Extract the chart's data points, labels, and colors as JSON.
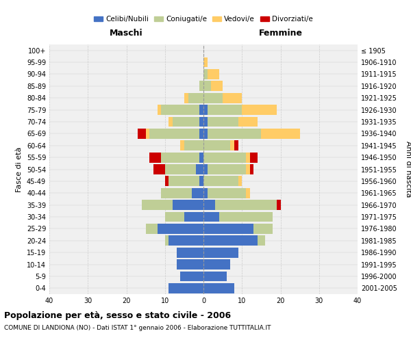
{
  "age_groups": [
    "0-4",
    "5-9",
    "10-14",
    "15-19",
    "20-24",
    "25-29",
    "30-34",
    "35-39",
    "40-44",
    "45-49",
    "50-54",
    "55-59",
    "60-64",
    "65-69",
    "70-74",
    "75-79",
    "80-84",
    "85-89",
    "90-94",
    "95-99",
    "100+"
  ],
  "birth_years": [
    "2001-2005",
    "1996-2000",
    "1991-1995",
    "1986-1990",
    "1981-1985",
    "1976-1980",
    "1971-1975",
    "1966-1970",
    "1961-1965",
    "1956-1960",
    "1951-1955",
    "1946-1950",
    "1941-1945",
    "1936-1940",
    "1931-1935",
    "1926-1930",
    "1921-1925",
    "1916-1920",
    "1911-1915",
    "1906-1910",
    "≤ 1905"
  ],
  "male": {
    "celibi": [
      9,
      6,
      7,
      7,
      9,
      12,
      5,
      8,
      3,
      1,
      2,
      1,
      0,
      1,
      1,
      1,
      0,
      0,
      0,
      0,
      0
    ],
    "coniugati": [
      0,
      0,
      0,
      0,
      1,
      3,
      5,
      8,
      8,
      8,
      8,
      10,
      5,
      13,
      7,
      10,
      4,
      1,
      0,
      0,
      0
    ],
    "vedovi": [
      0,
      0,
      0,
      0,
      0,
      0,
      0,
      0,
      0,
      0,
      0,
      0,
      1,
      1,
      1,
      1,
      1,
      0,
      0,
      0,
      0
    ],
    "divorziati": [
      0,
      0,
      0,
      0,
      0,
      0,
      0,
      0,
      0,
      1,
      3,
      3,
      0,
      2,
      0,
      0,
      0,
      0,
      0,
      0,
      0
    ]
  },
  "female": {
    "nubili": [
      8,
      6,
      7,
      9,
      14,
      13,
      4,
      3,
      1,
      0,
      1,
      0,
      0,
      1,
      1,
      1,
      0,
      0,
      0,
      0,
      0
    ],
    "coniugate": [
      0,
      0,
      0,
      0,
      2,
      5,
      14,
      16,
      10,
      9,
      10,
      11,
      7,
      14,
      8,
      9,
      5,
      2,
      1,
      0,
      0
    ],
    "vedove": [
      0,
      0,
      0,
      0,
      0,
      0,
      0,
      0,
      1,
      1,
      1,
      1,
      1,
      10,
      5,
      9,
      5,
      3,
      3,
      1,
      0
    ],
    "divorziate": [
      0,
      0,
      0,
      0,
      0,
      0,
      0,
      1,
      0,
      0,
      1,
      2,
      1,
      0,
      0,
      0,
      0,
      0,
      0,
      0,
      0
    ]
  },
  "colors": {
    "celibi": "#4472C4",
    "coniugati": "#BFCE96",
    "vedovi": "#FFCC66",
    "divorziati": "#CC0000"
  },
  "xlim": 40,
  "title": "Popolazione per età, sesso e stato civile - 2006",
  "subtitle": "COMUNE DI LANDIONA (NO) - Dati ISTAT 1° gennaio 2006 - Elaborazione TUTTITALIA.IT",
  "xlabel_left": "Maschi",
  "xlabel_right": "Femmine",
  "ylabel_left": "Fasce di età",
  "ylabel_right": "Anni di nascita",
  "legend_labels": [
    "Celibi/Nubili",
    "Coniugati/e",
    "Vedovi/e",
    "Divorziati/e"
  ],
  "bg_color": "#FFFFFF",
  "plot_bg_color": "#F0F0F0",
  "grid_color": "#CCCCCC"
}
